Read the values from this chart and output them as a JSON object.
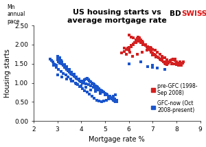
{
  "title": "US housing starts vs\naverage mortgage rate",
  "xlabel": "Mortgage rate %",
  "ylabel": "Housing starts",
  "ylabel2": "Mn\nannual\npace",
  "xlim": [
    2,
    9
  ],
  "ylim": [
    0.0,
    2.5
  ],
  "xticks": [
    2,
    3,
    4,
    5,
    6,
    7,
    8,
    9
  ],
  "yticks": [
    0.0,
    0.5,
    1.0,
    1.5,
    2.0,
    2.5
  ],
  "pre_gfc_label": "pre-GFC (1998-\nSep 2008)",
  "gfc_label": "GFC-now (Oct\n2008-present)",
  "pre_gfc_color": "#d42020",
  "gfc_color": "#1a55cc",
  "marker_size": 6,
  "bdswiss_bd_color": "#000000",
  "bdswiss_swiss_color": "#dd1111",
  "pre_gfc_x": [
    5.7,
    5.8,
    5.9,
    5.95,
    6.0,
    6.05,
    6.1,
    6.2,
    6.25,
    6.3,
    6.35,
    6.4,
    6.45,
    6.5,
    6.55,
    6.6,
    6.65,
    6.7,
    6.75,
    6.8,
    6.85,
    6.9,
    6.95,
    7.0,
    7.05,
    7.1,
    7.15,
    7.2,
    7.25,
    7.3,
    7.35,
    7.4,
    7.45,
    7.5,
    7.55,
    7.6,
    7.65,
    7.7,
    7.75,
    7.8,
    7.85,
    7.9,
    7.95,
    8.0,
    8.05,
    8.1,
    8.15,
    8.2,
    8.25,
    8.3,
    6.0,
    6.1,
    6.2,
    6.3,
    6.4,
    6.5,
    6.6,
    6.7,
    6.8,
    6.9,
    7.0,
    7.1,
    7.2,
    7.3,
    7.4,
    7.5,
    7.6,
    7.7,
    7.8,
    7.9,
    8.0,
    8.1,
    6.15,
    6.35,
    6.55,
    6.75,
    6.95,
    7.15,
    7.35,
    7.55,
    7.75,
    7.95,
    8.15,
    5.8,
    5.9,
    6.0,
    6.1,
    6.2,
    6.3,
    6.4,
    6.5,
    6.6,
    6.7,
    6.8,
    7.0,
    7.2,
    7.4,
    7.6,
    7.8,
    8.0,
    8.2
  ],
  "pre_gfc_y": [
    1.78,
    1.82,
    1.75,
    1.9,
    1.85,
    1.8,
    1.95,
    2.0,
    2.05,
    2.1,
    2.15,
    2.2,
    2.18,
    2.12,
    2.08,
    2.05,
    2.0,
    1.98,
    1.95,
    1.92,
    1.88,
    1.85,
    1.8,
    1.78,
    1.75,
    1.72,
    1.7,
    1.68,
    1.65,
    1.62,
    1.6,
    1.58,
    1.55,
    1.52,
    1.5,
    1.48,
    1.52,
    1.55,
    1.58,
    1.6,
    1.62,
    1.6,
    1.58,
    1.55,
    1.52,
    1.5,
    1.48,
    1.5,
    1.52,
    1.55,
    2.25,
    2.2,
    2.18,
    2.12,
    2.08,
    2.05,
    2.0,
    1.98,
    1.95,
    1.92,
    1.88,
    1.85,
    1.8,
    1.75,
    1.7,
    1.65,
    1.6,
    1.55,
    1.52,
    1.5,
    1.48,
    1.45,
    1.7,
    1.75,
    1.8,
    1.85,
    1.9,
    1.68,
    1.62,
    1.55,
    1.58,
    1.62,
    1.55,
    1.9,
    1.88,
    1.92,
    1.98,
    2.02,
    2.05,
    2.1,
    2.08,
    2.05,
    2.0,
    1.95,
    1.72,
    1.68,
    1.62,
    1.55,
    1.5,
    1.48,
    1.45
  ],
  "gfc_x": [
    2.7,
    2.75,
    2.8,
    2.85,
    2.9,
    2.95,
    3.0,
    3.0,
    3.05,
    3.1,
    3.1,
    3.15,
    3.2,
    3.25,
    3.3,
    3.35,
    3.4,
    3.45,
    3.5,
    3.55,
    3.6,
    3.65,
    3.7,
    3.75,
    3.8,
    3.85,
    3.9,
    3.95,
    4.0,
    4.05,
    4.1,
    4.15,
    4.2,
    4.25,
    4.3,
    4.35,
    4.4,
    4.45,
    4.5,
    4.55,
    4.6,
    4.65,
    4.7,
    4.75,
    4.8,
    4.85,
    4.9,
    4.95,
    5.0,
    5.05,
    5.1,
    5.15,
    5.2,
    5.25,
    5.3,
    5.35,
    5.4,
    5.45,
    5.5,
    3.0,
    3.1,
    3.2,
    3.3,
    3.4,
    3.5,
    3.6,
    3.7,
    3.8,
    3.9,
    4.0,
    4.1,
    4.2,
    4.3,
    4.4,
    4.5,
    4.6,
    4.7,
    4.8,
    4.9,
    5.0,
    5.1,
    5.2,
    5.3,
    5.4,
    5.5,
    2.85,
    2.95,
    3.05,
    3.15,
    3.25,
    3.35,
    3.45,
    3.55,
    3.65,
    3.75,
    3.85,
    3.95,
    4.05,
    4.15,
    4.25,
    4.35,
    4.45,
    4.55,
    4.65,
    4.75,
    4.85,
    4.95,
    5.05,
    5.15,
    5.25,
    5.35,
    5.45,
    3.0,
    3.2,
    3.4,
    3.6,
    3.8,
    4.0,
    4.2,
    4.4,
    4.6,
    4.8,
    5.0,
    5.2,
    5.4,
    6.0,
    6.5,
    7.0,
    7.0,
    7.2,
    6.8,
    7.5
  ],
  "gfc_y": [
    1.62,
    1.58,
    1.55,
    1.5,
    1.48,
    1.45,
    1.6,
    1.65,
    1.55,
    1.52,
    1.62,
    1.58,
    1.5,
    1.45,
    1.4,
    1.38,
    1.35,
    1.32,
    1.28,
    1.25,
    1.22,
    1.2,
    1.18,
    1.15,
    1.12,
    1.1,
    1.08,
    1.05,
    1.02,
    1.0,
    1.05,
    1.08,
    1.1,
    1.12,
    1.08,
    1.05,
    1.02,
    1.0,
    0.98,
    0.95,
    0.92,
    0.9,
    0.88,
    0.85,
    0.82,
    0.8,
    0.78,
    0.75,
    0.72,
    0.7,
    0.68,
    0.65,
    0.62,
    0.6,
    0.58,
    0.55,
    0.52,
    0.5,
    0.5,
    1.7,
    1.65,
    1.55,
    1.48,
    1.42,
    1.35,
    1.28,
    1.22,
    1.15,
    1.1,
    1.05,
    1.0,
    0.98,
    0.95,
    0.92,
    0.88,
    0.85,
    0.82,
    0.78,
    0.75,
    0.72,
    0.68,
    0.65,
    0.62,
    0.58,
    0.55,
    1.45,
    1.4,
    1.35,
    1.3,
    1.25,
    1.2,
    1.15,
    1.1,
    1.05,
    1.0,
    0.95,
    0.9,
    0.85,
    0.8,
    0.75,
    0.7,
    0.65,
    0.6,
    0.55,
    0.52,
    0.5,
    0.52,
    0.55,
    0.58,
    0.62,
    0.65,
    0.68,
    1.2,
    1.15,
    1.1,
    1.05,
    0.98,
    0.92,
    0.88,
    0.82,
    0.78,
    0.72,
    0.68,
    0.62,
    0.58,
    1.5,
    1.55,
    1.4,
    1.45,
    1.38,
    1.42,
    1.35
  ]
}
